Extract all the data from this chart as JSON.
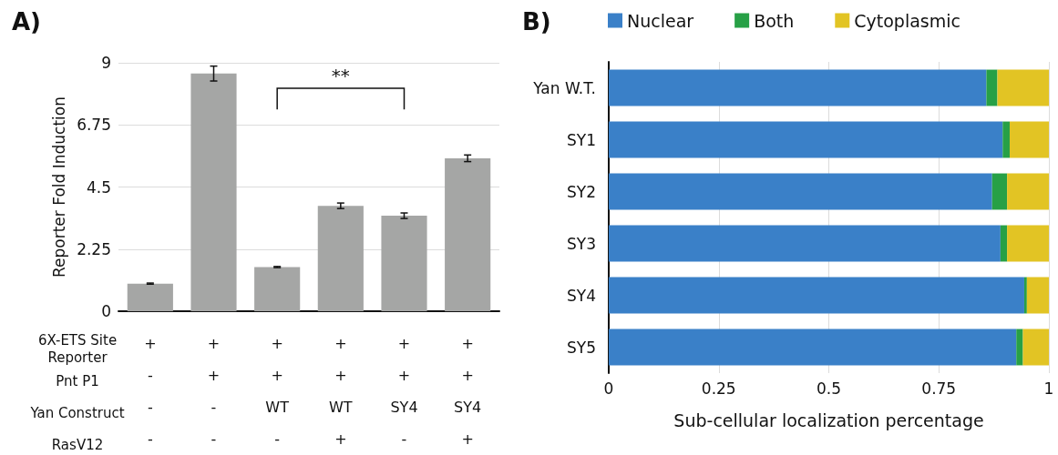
{
  "chart_data": [
    {
      "type": "bar",
      "title": "A)",
      "ylabel": "Reporter Fold Induction",
      "categories": [
        "+\n-\n-\n-",
        "+\n+\n-\n-",
        "+\n+\nWT\n-",
        "+\n+\nWT\n+",
        "+\n+\nSY4\n-",
        "+\n+\nSY4\n+"
      ],
      "values": [
        1.0,
        8.61,
        1.6,
        3.82,
        3.46,
        5.54
      ],
      "errors": [
        0.02,
        0.27,
        0.02,
        0.1,
        0.1,
        0.12
      ],
      "color": "#a5a6a5",
      "ylim": [
        0,
        9
      ],
      "yticks": [
        0,
        2.25,
        4.5,
        6.75,
        9
      ],
      "grid": "y",
      "annotations": [
        "**",
        "6X-ETS Site\nReporter",
        "Pnt P1",
        "Yan Construct",
        "RasV12"
      ]
    },
    {
      "type": "bar",
      "title": "B)",
      "orientation": "horizontal",
      "stacked": true,
      "xlabel": "Sub-cellular localization percentage",
      "categories": [
        "Yan W.T.",
        "SY1",
        "SY2",
        "SY3",
        "SY4",
        "SY5"
      ],
      "series": [
        {
          "name": "Nuclear",
          "color": "#3a80c8",
          "values": [
            0.858,
            0.895,
            0.871,
            0.89,
            0.944,
            0.926
          ]
        },
        {
          "name": "Both",
          "color": "#27a046",
          "values": [
            0.025,
            0.016,
            0.034,
            0.015,
            0.006,
            0.015
          ]
        },
        {
          "name": "Cytoplasmic",
          "color": "#e2c424",
          "values": [
            0.117,
            0.089,
            0.095,
            0.095,
            0.05,
            0.059
          ]
        }
      ],
      "xlim": [
        0,
        1
      ],
      "xticks": [
        0,
        0.25,
        0.5,
        0.75,
        1
      ],
      "grid": "x",
      "legend": "top"
    }
  ]
}
